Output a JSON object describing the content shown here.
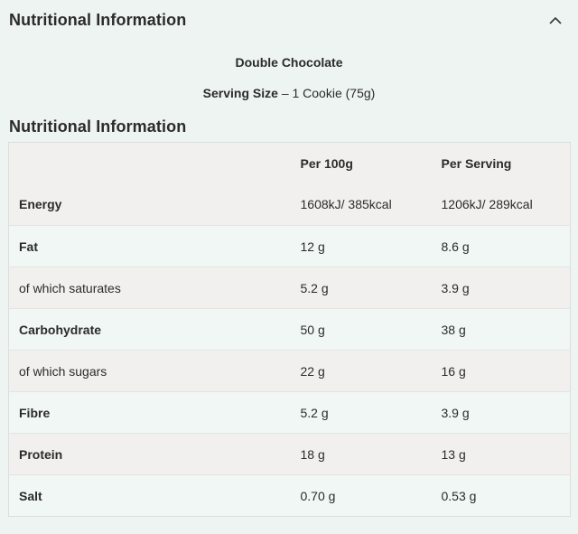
{
  "accordion": {
    "title": "Nutritional Information"
  },
  "product": {
    "flavour": "Double Chocolate",
    "serving_size_label": "Serving Size",
    "serving_size_value": "– 1 Cookie (75g)"
  },
  "section_heading": "Nutritional Information",
  "table": {
    "columns": [
      "",
      "Per 100g",
      "Per Serving"
    ],
    "rows": [
      {
        "label": "Energy",
        "per_100g": "1608kJ/ 385kcal",
        "per_serving": "1206kJ/ 289kcal",
        "sub": false
      },
      {
        "label": "Fat",
        "per_100g": "12 g",
        "per_serving": "8.6 g",
        "sub": false
      },
      {
        "label": "of which saturates",
        "per_100g": "5.2 g",
        "per_serving": "3.9 g",
        "sub": true
      },
      {
        "label": "Carbohydrate",
        "per_100g": "50 g",
        "per_serving": "38 g",
        "sub": false
      },
      {
        "label": "of which sugars",
        "per_100g": "22 g",
        "per_serving": "16 g",
        "sub": true
      },
      {
        "label": "Fibre",
        "per_100g": "5.2 g",
        "per_serving": "3.9 g",
        "sub": false
      },
      {
        "label": "Protein",
        "per_100g": "18 g",
        "per_serving": "13 g",
        "sub": false
      },
      {
        "label": "Salt",
        "per_100g": "0.70 g",
        "per_serving": "0.53 g",
        "sub": false
      }
    ]
  },
  "colors": {
    "page_background": "#edf4f1",
    "row_gray": "#f1f0ef",
    "row_mint": "#f0f7f4",
    "table_border": "#dcdedc",
    "text": "#2b2b2b"
  }
}
